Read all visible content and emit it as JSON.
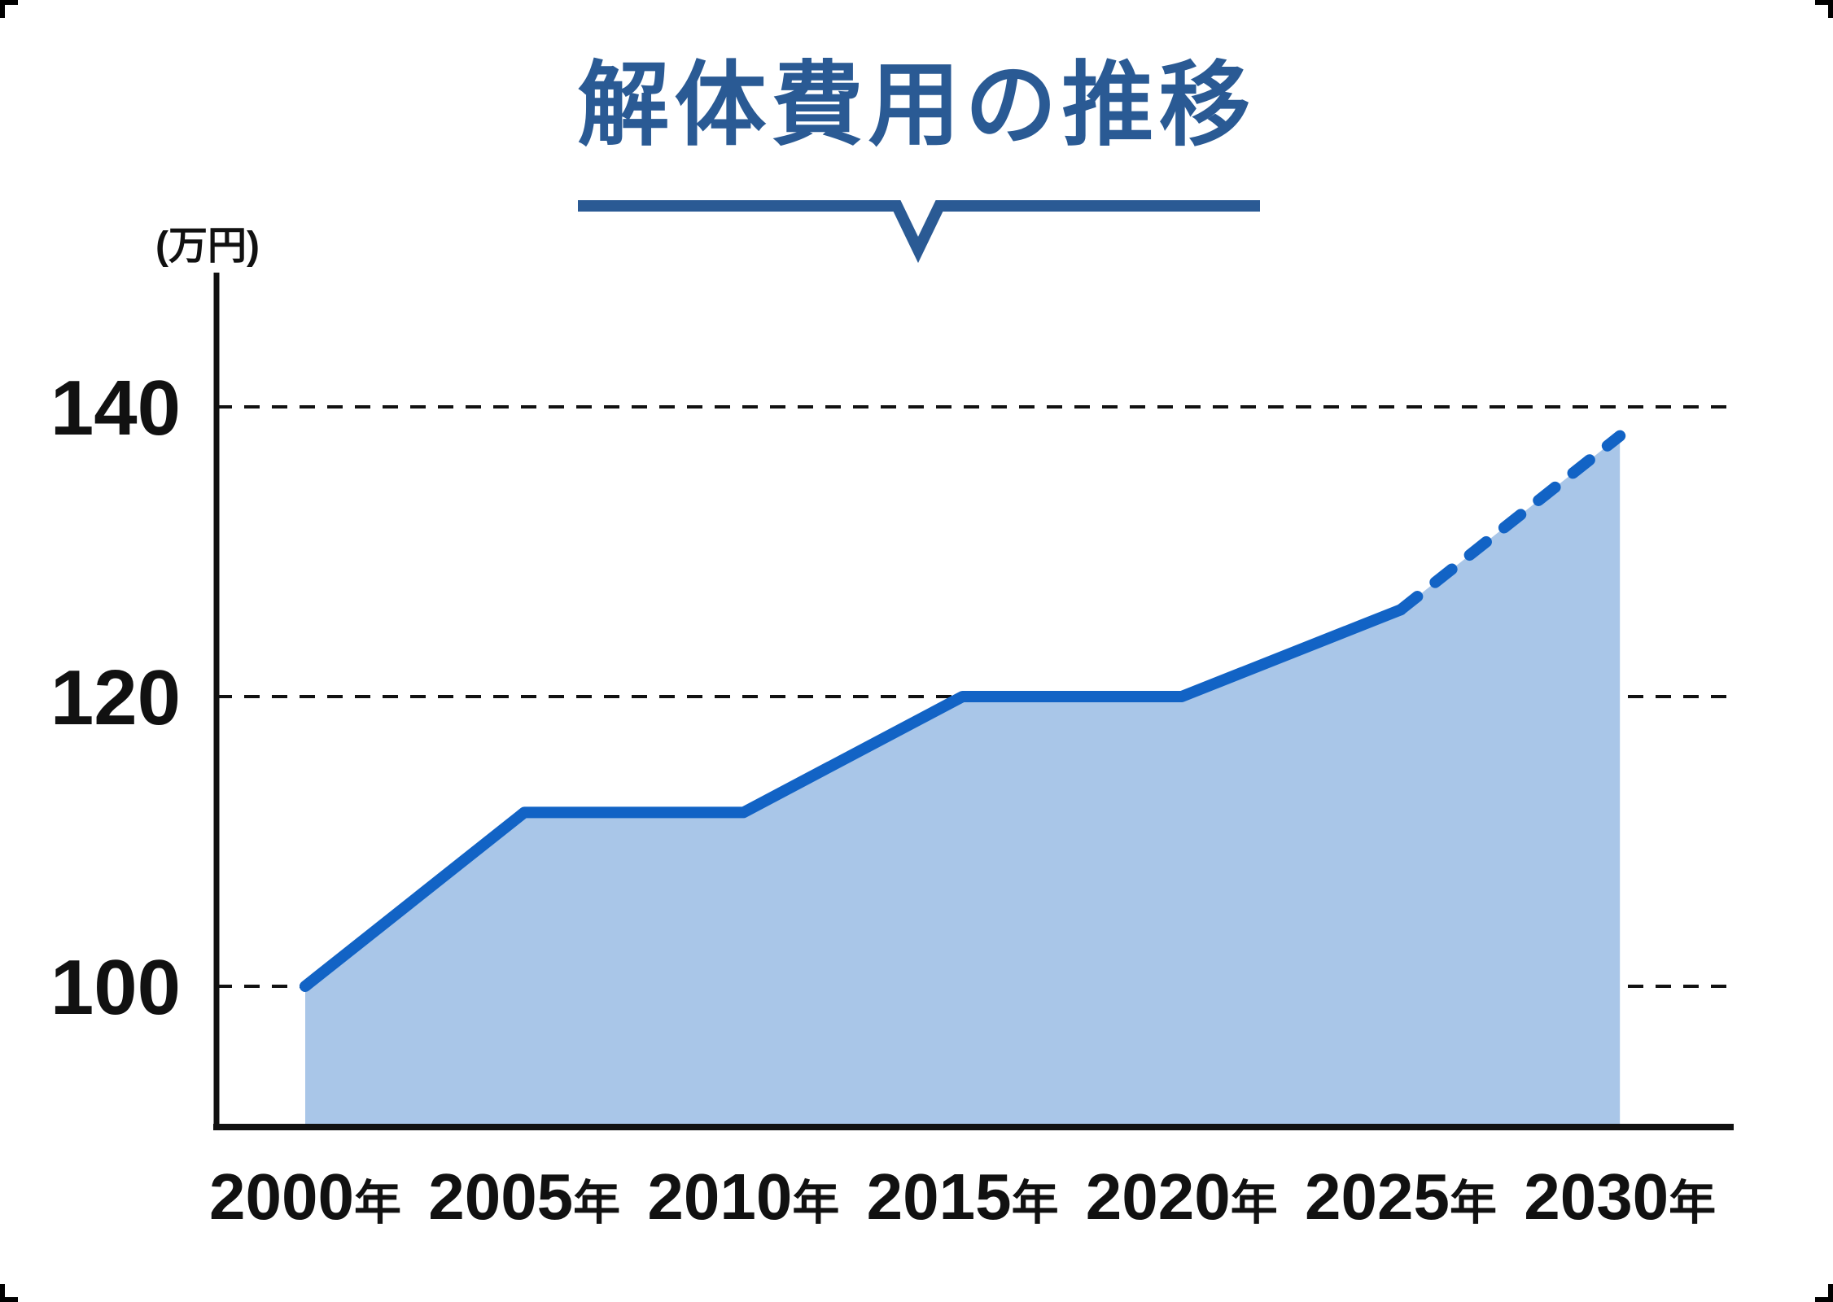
{
  "title": {
    "text": "解体費用の推移",
    "color": "#2a5a94"
  },
  "y_axis": {
    "unit_label": "(万円)"
  },
  "chart_data": {
    "type": "area",
    "title": "解体費用の推移",
    "categories": [
      "2000年",
      "2005年",
      "2010年",
      "2015年",
      "2020年",
      "2025年",
      "2030年"
    ],
    "x_years": [
      2000,
      2005,
      2010,
      2015,
      2020,
      2025,
      2030
    ],
    "values": [
      100,
      112,
      112,
      120,
      120,
      126,
      138
    ],
    "unit_label": "(万円)",
    "ylabel": "万円",
    "yticks": [
      100,
      120,
      140
    ],
    "ylim": [
      90,
      149
    ],
    "grid": "horizontal-dashed",
    "legend": "none",
    "projection": {
      "from_year": 2025,
      "to_year": 2030,
      "style": "dashed"
    },
    "colors": {
      "line": "#1263c5",
      "fill": "#a9c6e8",
      "grid": "#111111",
      "axis": "#111111",
      "text": "#111111",
      "title": "#2a5a94"
    }
  }
}
